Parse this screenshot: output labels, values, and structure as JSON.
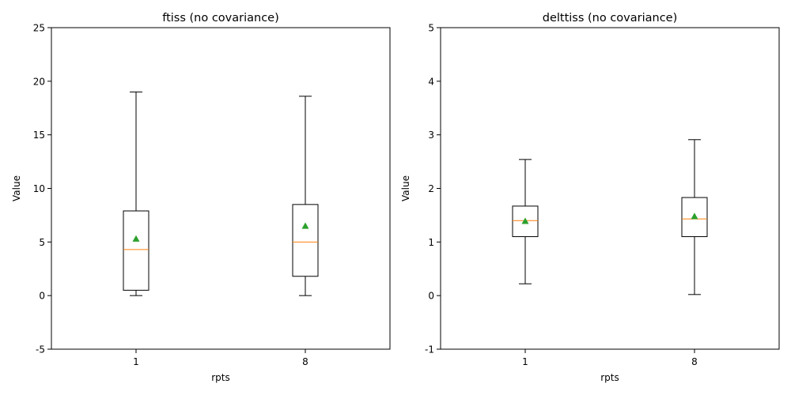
{
  "chart_data": [
    {
      "type": "box",
      "title": "ftiss (no covariance)",
      "xlabel": "rpts",
      "ylabel": "Value",
      "ylim": [
        -5,
        25
      ],
      "yticks": [
        -5,
        0,
        5,
        10,
        15,
        20,
        25
      ],
      "categories": [
        "1",
        "8"
      ],
      "boxes": [
        {
          "whislo": 0.0,
          "q1": 0.5,
          "med": 4.3,
          "q3": 7.9,
          "whishi": 19.0,
          "mean": 5.3
        },
        {
          "whislo": 0.0,
          "q1": 1.8,
          "med": 5.0,
          "q3": 8.5,
          "whishi": 18.6,
          "mean": 6.5
        }
      ]
    },
    {
      "type": "box",
      "title": "delttiss (no covariance)",
      "xlabel": "rpts",
      "ylabel": "Value",
      "ylim": [
        -1,
        5
      ],
      "yticks": [
        -1,
        0,
        1,
        2,
        3,
        4,
        5
      ],
      "categories": [
        "1",
        "8"
      ],
      "boxes": [
        {
          "whislo": 0.22,
          "q1": 1.1,
          "med": 1.4,
          "q3": 1.67,
          "whishi": 2.54,
          "mean": 1.39
        },
        {
          "whislo": 0.02,
          "q1": 1.1,
          "med": 1.43,
          "q3": 1.83,
          "whishi": 2.91,
          "mean": 1.48
        }
      ]
    }
  ],
  "colors": {
    "median": "#ff7f0e",
    "mean_marker": "#2ca02c",
    "box": "#000000"
  }
}
